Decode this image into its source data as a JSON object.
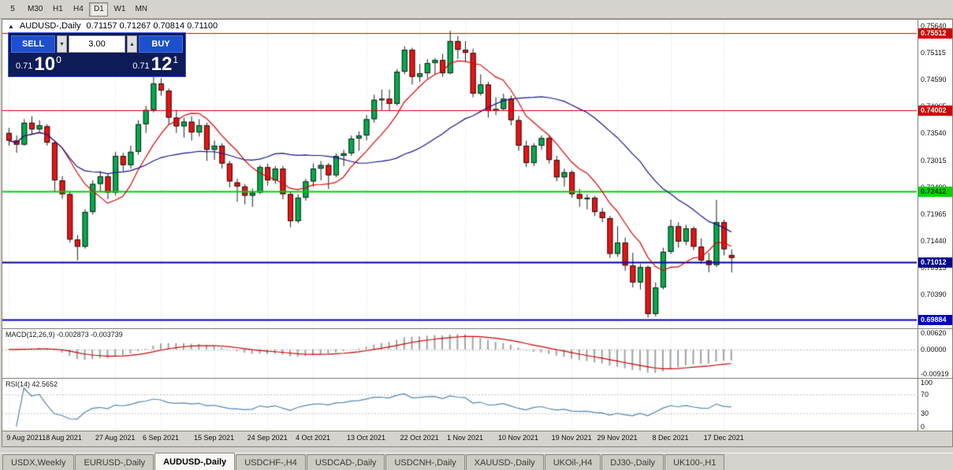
{
  "toolbar": {
    "periods": [
      {
        "label": "5",
        "active": false
      },
      {
        "label": "M30",
        "active": false
      },
      {
        "label": "H1",
        "active": false
      },
      {
        "label": "H4",
        "active": false
      },
      {
        "label": "D1",
        "active": true
      },
      {
        "label": "W1",
        "active": false
      },
      {
        "label": "MN",
        "active": false
      }
    ]
  },
  "chart": {
    "symbol_period": "AUDUSD-,Daily",
    "ohlc_text": "0.71157 0.71267 0.70814 0.71100",
    "collapse_icon": "▲"
  },
  "trade_panel": {
    "sell_label": "SELL",
    "buy_label": "BUY",
    "volume": "3.00",
    "stepper_down": "▼",
    "stepper_up": "▲",
    "sell_price": {
      "prefix": "0.71",
      "big": "10",
      "sup": "0"
    },
    "buy_price": {
      "prefix": "0.71",
      "big": "12",
      "sup": "1"
    }
  },
  "chart_data": {
    "type": "candlestick",
    "title": "AUDUSD-,Daily",
    "ohlc": [
      [
        0.7355,
        0.7365,
        0.733,
        0.734
      ],
      [
        0.734,
        0.735,
        0.7316,
        0.7332
      ],
      [
        0.7332,
        0.7382,
        0.733,
        0.7375
      ],
      [
        0.7375,
        0.7388,
        0.7352,
        0.7362
      ],
      [
        0.7362,
        0.738,
        0.7355,
        0.737
      ],
      [
        0.7368,
        0.7372,
        0.733,
        0.7336
      ],
      [
        0.7336,
        0.734,
        0.724,
        0.7262
      ],
      [
        0.7262,
        0.727,
        0.7226,
        0.7235
      ],
      [
        0.7235,
        0.724,
        0.714,
        0.7146
      ],
      [
        0.7146,
        0.7155,
        0.7105,
        0.7132
      ],
      [
        0.7132,
        0.7205,
        0.7128,
        0.72
      ],
      [
        0.72,
        0.7262,
        0.7195,
        0.7255
      ],
      [
        0.7255,
        0.728,
        0.724,
        0.727
      ],
      [
        0.727,
        0.7275,
        0.7225,
        0.7238
      ],
      [
        0.7238,
        0.7318,
        0.7232,
        0.731
      ],
      [
        0.731,
        0.7316,
        0.728,
        0.7292
      ],
      [
        0.7292,
        0.733,
        0.7285,
        0.7318
      ],
      [
        0.7318,
        0.738,
        0.7312,
        0.7372
      ],
      [
        0.7372,
        0.7408,
        0.7355,
        0.74
      ],
      [
        0.74,
        0.7477,
        0.7395,
        0.7452
      ],
      [
        0.7452,
        0.7462,
        0.7428,
        0.7438
      ],
      [
        0.7438,
        0.7442,
        0.7372,
        0.7385
      ],
      [
        0.7385,
        0.74,
        0.7355,
        0.7368
      ],
      [
        0.7368,
        0.7385,
        0.7346,
        0.7377
      ],
      [
        0.7377,
        0.7388,
        0.734,
        0.7356
      ],
      [
        0.7356,
        0.7382,
        0.7348,
        0.737
      ],
      [
        0.737,
        0.7375,
        0.73,
        0.7322
      ],
      [
        0.7322,
        0.734,
        0.7302,
        0.733
      ],
      [
        0.733,
        0.7335,
        0.7285,
        0.7295
      ],
      [
        0.7295,
        0.73,
        0.7248,
        0.726
      ],
      [
        0.7258,
        0.7265,
        0.722,
        0.725
      ],
      [
        0.725,
        0.7255,
        0.7215,
        0.7232
      ],
      [
        0.7232,
        0.7246,
        0.721,
        0.7238
      ],
      [
        0.7238,
        0.7292,
        0.7235,
        0.7288
      ],
      [
        0.7288,
        0.7295,
        0.7252,
        0.7262
      ],
      [
        0.7262,
        0.729,
        0.7255,
        0.7285
      ],
      [
        0.7285,
        0.729,
        0.7225,
        0.7235
      ],
      [
        0.7235,
        0.724,
        0.717,
        0.7182
      ],
      [
        0.7182,
        0.7235,
        0.7178,
        0.7228
      ],
      [
        0.7228,
        0.7265,
        0.7222,
        0.726
      ],
      [
        0.726,
        0.7295,
        0.725,
        0.7285
      ],
      [
        0.7285,
        0.73,
        0.7262,
        0.7292
      ],
      [
        0.7292,
        0.7296,
        0.7245,
        0.7272
      ],
      [
        0.7272,
        0.7315,
        0.7268,
        0.731
      ],
      [
        0.731,
        0.7322,
        0.729,
        0.7315
      ],
      [
        0.7315,
        0.735,
        0.731,
        0.7344
      ],
      [
        0.7344,
        0.7358,
        0.732,
        0.735
      ],
      [
        0.735,
        0.739,
        0.734,
        0.7382
      ],
      [
        0.7382,
        0.743,
        0.7375,
        0.742
      ],
      [
        0.742,
        0.744,
        0.74,
        0.7422
      ],
      [
        0.7422,
        0.744,
        0.7398,
        0.7412
      ],
      [
        0.7412,
        0.748,
        0.7408,
        0.7475
      ],
      [
        0.7475,
        0.7525,
        0.747,
        0.7518
      ],
      [
        0.7518,
        0.7522,
        0.745,
        0.7465
      ],
      [
        0.7465,
        0.749,
        0.7455,
        0.7472
      ],
      [
        0.7472,
        0.75,
        0.7462,
        0.7492
      ],
      [
        0.7492,
        0.7502,
        0.747,
        0.7498
      ],
      [
        0.7498,
        0.751,
        0.7465,
        0.7472
      ],
      [
        0.7472,
        0.7555,
        0.747,
        0.7535
      ],
      [
        0.7535,
        0.7545,
        0.75,
        0.7518
      ],
      [
        0.7518,
        0.7535,
        0.7495,
        0.7512
      ],
      [
        0.7512,
        0.752,
        0.7425,
        0.7432
      ],
      [
        0.7432,
        0.747,
        0.7428,
        0.745
      ],
      [
        0.745,
        0.7455,
        0.7385,
        0.7398
      ],
      [
        0.7398,
        0.7425,
        0.739,
        0.7402
      ],
      [
        0.7402,
        0.7432,
        0.7398,
        0.7422
      ],
      [
        0.7422,
        0.7428,
        0.737,
        0.738
      ],
      [
        0.738,
        0.7388,
        0.732,
        0.733
      ],
      [
        0.733,
        0.734,
        0.7288,
        0.7296
      ],
      [
        0.7296,
        0.7335,
        0.729,
        0.733
      ],
      [
        0.733,
        0.735,
        0.7322,
        0.7345
      ],
      [
        0.7345,
        0.735,
        0.7295,
        0.7302
      ],
      [
        0.7302,
        0.731,
        0.726,
        0.7268
      ],
      [
        0.7268,
        0.7285,
        0.725,
        0.7278
      ],
      [
        0.7278,
        0.7282,
        0.7228,
        0.7235
      ],
      [
        0.7235,
        0.7245,
        0.721,
        0.7226
      ],
      [
        0.7226,
        0.7235,
        0.7205,
        0.7228
      ],
      [
        0.7228,
        0.7232,
        0.7192,
        0.72
      ],
      [
        0.72,
        0.7208,
        0.718,
        0.7188
      ],
      [
        0.7188,
        0.7192,
        0.711,
        0.7118
      ],
      [
        0.7118,
        0.7172,
        0.7112,
        0.714
      ],
      [
        0.714,
        0.715,
        0.7085,
        0.7095
      ],
      [
        0.7095,
        0.712,
        0.7052,
        0.7062
      ],
      [
        0.7062,
        0.7098,
        0.7048,
        0.7092
      ],
      [
        0.7092,
        0.7095,
        0.6993,
        0.7
      ],
      [
        0.7,
        0.7062,
        0.6995,
        0.7052
      ],
      [
        0.7052,
        0.713,
        0.7048,
        0.7122
      ],
      [
        0.7122,
        0.7185,
        0.7118,
        0.7172
      ],
      [
        0.7172,
        0.718,
        0.713,
        0.7142
      ],
      [
        0.7142,
        0.7175,
        0.7135,
        0.7168
      ],
      [
        0.7168,
        0.7172,
        0.7125,
        0.7132
      ],
      [
        0.7132,
        0.7148,
        0.7098,
        0.7105
      ],
      [
        0.7105,
        0.712,
        0.7082,
        0.7096
      ],
      [
        0.7096,
        0.7224,
        0.7092,
        0.718
      ],
      [
        0.718,
        0.7185,
        0.7115,
        0.7127
      ],
      [
        0.71157,
        0.71267,
        0.70814,
        0.711
      ]
    ],
    "x_labels": [
      {
        "i": 0,
        "t": "9 Aug 2021"
      },
      {
        "i": 7,
        "t": "18 Aug 2021"
      },
      {
        "i": 14,
        "t": "27 Aug 2021"
      },
      {
        "i": 20,
        "t": "6 Sep 2021"
      },
      {
        "i": 27,
        "t": "15 Sep 2021"
      },
      {
        "i": 34,
        "t": "24 Sep 2021"
      },
      {
        "i": 40,
        "t": "4 Oct 2021"
      },
      {
        "i": 47,
        "t": "13 Oct 2021"
      },
      {
        "i": 54,
        "t": "22 Oct 2021"
      },
      {
        "i": 60,
        "t": "1 Nov 2021"
      },
      {
        "i": 67,
        "t": "10 Nov 2021"
      },
      {
        "i": 74,
        "t": "19 Nov 2021"
      },
      {
        "i": 80,
        "t": "29 Nov 2021"
      },
      {
        "i": 87,
        "t": "8 Dec 2021"
      },
      {
        "i": 94,
        "t": "17 Dec 2021"
      }
    ],
    "y_range": [
      0.6972,
      0.7577
    ],
    "y_ticks": [
      "0.75640",
      "0.75115",
      "0.74590",
      "0.74065",
      "0.73540",
      "0.73015",
      "0.72490",
      "0.71965",
      "0.71440",
      "0.70915",
      "0.70390",
      "0.69865"
    ],
    "hlines": [
      {
        "price": 0.75512,
        "color": "#d40000",
        "width": 1
      },
      {
        "price": 0.74002,
        "color": "#d40000",
        "width": 1
      },
      {
        "price": 0.72412,
        "color": "#00cc00",
        "width": 2
      },
      {
        "price": 0.71012,
        "color": "#000090",
        "width": 2
      },
      {
        "price": 0.69884,
        "color": "#0000c0",
        "width": 2
      }
    ],
    "badges": [
      {
        "price": 0.75512,
        "text": "0.75512",
        "bg": "#d40000",
        "fg": "#ffffff"
      },
      {
        "price": 0.74002,
        "text": "0.74002",
        "bg": "#d40000",
        "fg": "#ffffff"
      },
      {
        "price": 0.72412,
        "text": "0.72412",
        "bg": "#00d400",
        "fg": "#003300"
      },
      {
        "price": 0.71012,
        "text": "0.71012",
        "bg": "#000090",
        "fg": "#ffffff"
      },
      {
        "price": 0.69884,
        "text": "0.69884",
        "bg": "#0000c0",
        "fg": "#ffffff"
      }
    ],
    "ma_fast": {
      "period": 8,
      "color": "#dd0000"
    },
    "ma_slow": {
      "period": 26,
      "color": "#14148c"
    },
    "colors": {
      "up": "#00ad4c",
      "down": "#ef1010",
      "wick": "#1c1c1c",
      "grid": "#d8d8d8"
    },
    "macd": {
      "label": "MACD(12,26,9)",
      "values_text": "-0.002873 -0.003739",
      "fast": 12,
      "slow": 26,
      "signal": 9,
      "range": [
        -0.0105,
        0.0075
      ],
      "y_ticks": [
        {
          "v": 0.0062,
          "t": "0.00620"
        },
        {
          "v": 0,
          "t": "0.00000"
        },
        {
          "v": -0.00919,
          "t": "-0.00919"
        }
      ],
      "hist_color": "#a0a0a0",
      "signal_color": "#cc0000"
    },
    "rsi": {
      "label": "RSI(14)",
      "value_text": "42.5652",
      "period": 14,
      "levels": [
        100,
        70,
        30,
        0
      ],
      "line_color": "#4f86b0"
    }
  },
  "tabs": {
    "items": [
      {
        "label": "USDX,Weekly",
        "active": false
      },
      {
        "label": "EURUSD-,Daily",
        "active": false
      },
      {
        "label": "AUDUSD-,Daily",
        "active": true
      },
      {
        "label": "USDCHF-,H4",
        "active": false
      },
      {
        "label": "USDCAD-,Daily",
        "active": false
      },
      {
        "label": "USDCNH-,Daily",
        "active": false
      },
      {
        "label": "XAUUSD-,Daily",
        "active": false
      },
      {
        "label": "UKOil-,H4",
        "active": false
      },
      {
        "label": "DJ30-,Daily",
        "active": false
      },
      {
        "label": "UK100-,H1",
        "active": false
      }
    ]
  }
}
